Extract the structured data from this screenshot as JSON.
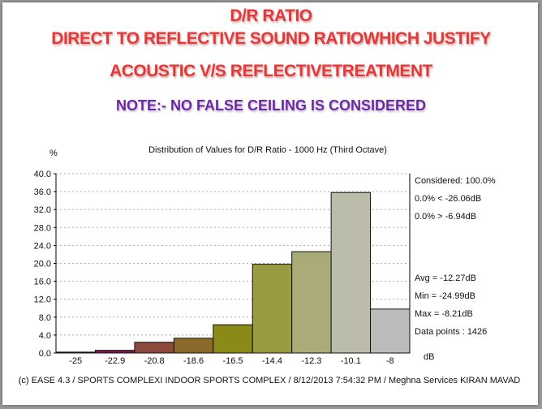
{
  "heading": {
    "line1": "D/R RATIO",
    "line2": "DIRECT TO REFLECTIVE SOUND RATIOWHICH JUSTIFY",
    "line3": "ACOUSTIC V/S REFLECTIVETREATMENT",
    "note": "NOTE:- NO FALSE CEILING IS CONSIDERED"
  },
  "chart_data": {
    "type": "bar",
    "title": "Distribution of Values for D/R Ratio  - 1000 Hz (Third Octave)",
    "ylabel": "%",
    "xlabel": "dB",
    "ylim": [
      0,
      40
    ],
    "yticks": [
      "0.0",
      "4.0",
      "8.0",
      "12.0",
      "16.0",
      "20.0",
      "24.0",
      "28.0",
      "32.0",
      "36.0",
      "40.0"
    ],
    "grid": true,
    "categories": [
      "-25",
      "-22.9",
      "-20.8",
      "-18.6",
      "-16.5",
      "-14.4",
      "-12.3",
      "-10.1",
      "-8"
    ],
    "values": [
      0.2,
      0.6,
      2.4,
      3.3,
      6.3,
      19.8,
      22.6,
      35.8,
      9.8
    ],
    "colors": [
      "#2a2a2a",
      "#7a1a4a",
      "#8b4a3a",
      "#8a6a2a",
      "#8a8a18",
      "#9a9a40",
      "#abab78",
      "#bcbcaa",
      "#bbbbbb"
    ],
    "stats_top": [
      "Considered: 100.0%",
      "0.0%  <  -26.06dB",
      "0.0%  >  -6.94dB"
    ],
    "stats_bottom": [
      "Avg = -12.27dB",
      "Min = -24.99dB",
      "Max = -8.21dB",
      "Data points : 1426"
    ],
    "footer": "(c) EASE 4.3  / SPORTS COMPLEXI INDOOR SPORTS COMPLEX / 8/12/2013 7:54:32 PM / Meghna Services KIRAN MAVAD"
  }
}
